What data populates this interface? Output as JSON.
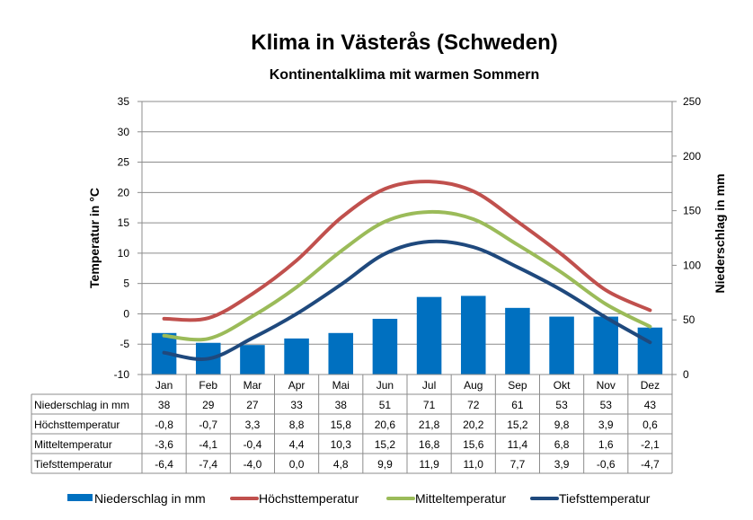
{
  "chart_data": {
    "type": "bar+line",
    "title": "Klima in Västerås (Schweden)",
    "subtitle": "Kontinentalklima mit warmen Sommern",
    "ylabel": "Temperatur  in  °C",
    "y2label": "Niederschlag  in  mm",
    "ylim": [
      -10,
      35
    ],
    "y2lim": [
      0,
      250
    ],
    "yticks": [
      "35",
      "30",
      "25",
      "20",
      "15",
      "10",
      "5",
      "0",
      "-5",
      "-10"
    ],
    "y2ticks": [
      "250",
      "200",
      "150",
      "100",
      "50",
      "0"
    ],
    "grid": true,
    "legend_position": "bottom",
    "categories": [
      "Jan",
      "Feb",
      "Mar",
      "Apr",
      "Mai",
      "Jun",
      "Jul",
      "Aug",
      "Sep",
      "Okt",
      "Nov",
      "Dez"
    ],
    "series": [
      {
        "name": "Niederschlag in mm",
        "type": "bar",
        "axis": "right",
        "color": "#0070C0",
        "values": [
          38,
          29,
          27,
          33,
          38,
          51,
          71,
          72,
          61,
          53,
          53,
          43
        ],
        "labels": [
          "38",
          "29",
          "27",
          "33",
          "38",
          "51",
          "71",
          "72",
          "61",
          "53",
          "53",
          "43"
        ]
      },
      {
        "name": "Höchsttemperatur",
        "type": "line",
        "axis": "left",
        "color": "#C0504D",
        "values": [
          -0.8,
          -0.7,
          3.3,
          8.8,
          15.8,
          20.6,
          21.8,
          20.2,
          15.2,
          9.8,
          3.9,
          0.6
        ],
        "labels": [
          "-0,8",
          "-0,7",
          "3,3",
          "8,8",
          "15,8",
          "20,6",
          "21,8",
          "20,2",
          "15,2",
          "9,8",
          "3,9",
          "0,6"
        ]
      },
      {
        "name": "Mitteltemperatur",
        "type": "line",
        "axis": "left",
        "color": "#9BBB59",
        "values": [
          -3.6,
          -4.1,
          -0.4,
          4.4,
          10.3,
          15.2,
          16.8,
          15.6,
          11.4,
          6.8,
          1.6,
          -2.1
        ],
        "labels": [
          "-3,6",
          "-4,1",
          "-0,4",
          "4,4",
          "10,3",
          "15,2",
          "16,8",
          "15,6",
          "11,4",
          "6,8",
          "1,6",
          "-2,1"
        ]
      },
      {
        "name": "Tiefsttemperatur",
        "type": "line",
        "axis": "left",
        "color": "#1F497D",
        "values": [
          -6.4,
          -7.4,
          -4.0,
          0.0,
          4.8,
          9.9,
          11.9,
          11.0,
          7.7,
          3.9,
          -0.6,
          -4.7
        ],
        "labels": [
          "-6,4",
          "-7,4",
          "-4,0",
          "0,0",
          "4,8",
          "9,9",
          "11,9",
          "11,0",
          "7,7",
          "3,9",
          "-0,6",
          "-4,7"
        ]
      }
    ]
  }
}
